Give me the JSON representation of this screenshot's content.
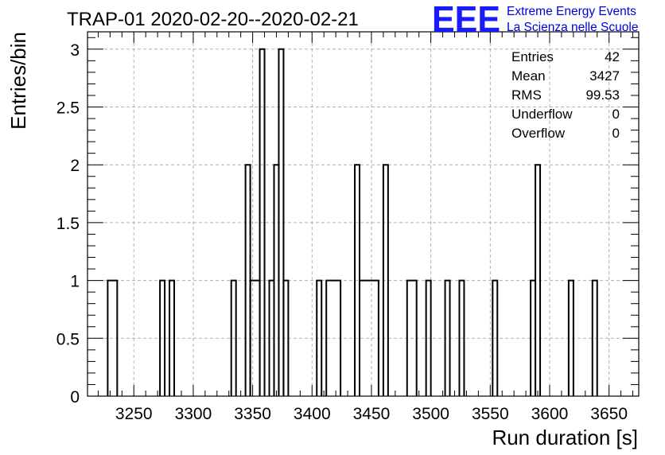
{
  "chart_data": {
    "type": "histogram",
    "title": "TRAP-01 2020-02-20--2020-02-21",
    "xlabel": "Run duration [s]",
    "ylabel": "Entries/bin",
    "xlim": [
      3211,
      3675
    ],
    "ylim": [
      0,
      3.15
    ],
    "grid": true,
    "xticks": [
      3250,
      3300,
      3350,
      3400,
      3450,
      3500,
      3550,
      3600,
      3650
    ],
    "yticks": [
      0,
      0.5,
      1,
      1.5,
      2,
      2.5,
      3
    ],
    "bins": [
      {
        "x0": 3228,
        "x1": 3236,
        "y": 1
      },
      {
        "x0": 3272,
        "x1": 3276,
        "y": 1
      },
      {
        "x0": 3280,
        "x1": 3284,
        "y": 1
      },
      {
        "x0": 3332,
        "x1": 3336,
        "y": 1
      },
      {
        "x0": 3344,
        "x1": 3348,
        "y": 2
      },
      {
        "x0": 3348,
        "x1": 3356,
        "y": 1
      },
      {
        "x0": 3356,
        "x1": 3360,
        "y": 3
      },
      {
        "x0": 3364,
        "x1": 3368,
        "y": 1
      },
      {
        "x0": 3368,
        "x1": 3372,
        "y": 2
      },
      {
        "x0": 3372,
        "x1": 3376,
        "y": 3
      },
      {
        "x0": 3376,
        "x1": 3380,
        "y": 1
      },
      {
        "x0": 3404,
        "x1": 3408,
        "y": 1
      },
      {
        "x0": 3412,
        "x1": 3424,
        "y": 1
      },
      {
        "x0": 3436,
        "x1": 3440,
        "y": 2
      },
      {
        "x0": 3440,
        "x1": 3456,
        "y": 1
      },
      {
        "x0": 3460,
        "x1": 3464,
        "y": 2
      },
      {
        "x0": 3480,
        "x1": 3488,
        "y": 1
      },
      {
        "x0": 3496,
        "x1": 3500,
        "y": 1
      },
      {
        "x0": 3512,
        "x1": 3516,
        "y": 1
      },
      {
        "x0": 3524,
        "x1": 3528,
        "y": 1
      },
      {
        "x0": 3552,
        "x1": 3556,
        "y": 1
      },
      {
        "x0": 3584,
        "x1": 3588,
        "y": 1
      },
      {
        "x0": 3588,
        "x1": 3592,
        "y": 2
      },
      {
        "x0": 3616,
        "x1": 3620,
        "y": 1
      },
      {
        "x0": 3636,
        "x1": 3640,
        "y": 1
      }
    ],
    "stats": [
      {
        "label": "Entries",
        "value": "42"
      },
      {
        "label": "Mean",
        "value": "3427"
      },
      {
        "label": "RMS",
        "value": "99.53"
      },
      {
        "label": "Underflow",
        "value": "0"
      },
      {
        "label": "Overflow",
        "value": "0"
      }
    ]
  },
  "logo": {
    "mark": "EEE",
    "line1": "Extreme Energy Events",
    "line2": "La Scienza nelle Scuole",
    "color": "#1a1aff"
  }
}
